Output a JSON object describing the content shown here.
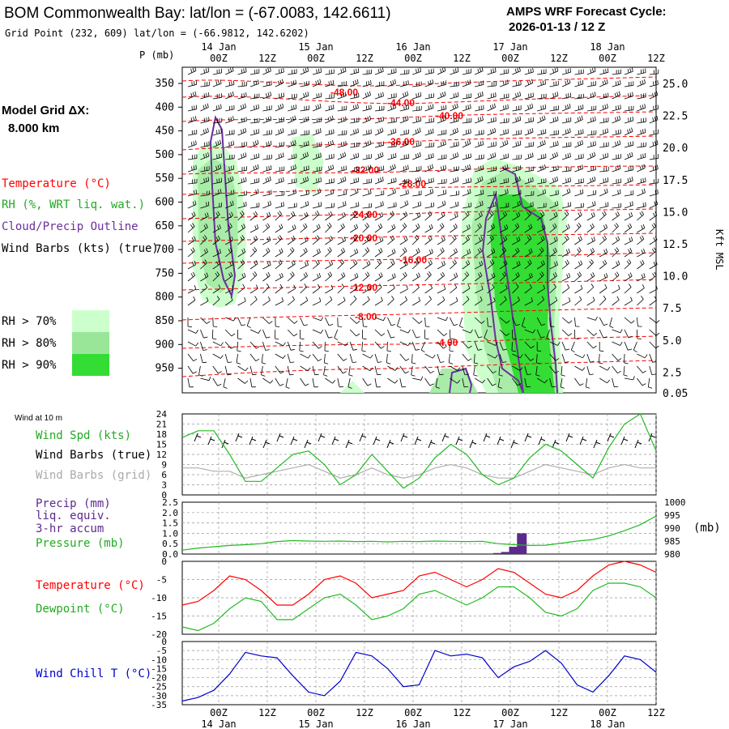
{
  "header": {
    "title": "BOM Commonwealth Bay:  lat/lon = (-67.0083, 142.6611)",
    "subtitle": "Grid Point (232, 609) lat/lon = (-66.9812, 142.6202)",
    "cycle_label": "AMPS WRF Forecast Cycle:",
    "cycle_value": "2026-01-13 / 12  Z"
  },
  "left_panel": {
    "grid_label": "Model Grid ΔX:",
    "grid_value": "8.000 km",
    "legend": {
      "temperature": "Temperature (°C)",
      "rh": "RH (%, WRT liq. wat.)",
      "cloud": "Cloud/Precip Outline",
      "wind": "Wind Barbs (kts) (true)"
    },
    "rh_levels": [
      "RH > 70%",
      "RH > 80%",
      "RH > 90%"
    ]
  },
  "colors": {
    "temp": "#ff0000",
    "rh70": "#ccffcc",
    "rh80": "#99e699",
    "rh90": "#33dd33",
    "cloud": "#6a2f9a",
    "precip": "#5c2a8c",
    "wind_chill": "#0000cc",
    "green_line": "#22bb22"
  },
  "time_axis": {
    "ticks": [
      "00Z",
      "12Z",
      "00Z",
      "12Z",
      "00Z",
      "12Z",
      "00Z",
      "12Z",
      "00Z",
      "12Z"
    ],
    "dates": [
      "14 Jan",
      "15 Jan",
      "16 Jan",
      "17 Jan",
      "18 Jan"
    ]
  },
  "chart_data": [
    {
      "type": "contour",
      "name": "vertical-cross-section",
      "xlabel": "",
      "ylabel_left": "P (mb)",
      "ylabel_right": "Kft MSL",
      "y_ticks_left": [
        "350",
        "400",
        "450",
        "500",
        "550",
        "600",
        "650",
        "700",
        "750",
        "800",
        "850",
        "900",
        "950"
      ],
      "y_ticks_right": [
        "25.0",
        "22.5",
        "20.0",
        "17.5",
        "15.0",
        "12.5",
        "10.0",
        "7.5",
        "5.0",
        "2.5",
        "0.05"
      ],
      "temperature_labels": [
        "-48.00",
        "-44.00",
        "-40.00",
        "-36.00",
        "-32.00",
        "-28.00",
        "-24.00",
        "-20.00",
        "-16.00",
        "-12.00",
        "-8.00",
        "-4.00"
      ]
    },
    {
      "type": "line",
      "name": "wind-speed",
      "panel_label": "Wind at 10 m",
      "series_labels": [
        "Wind Spd (kts)",
        "Wind Barbs (true)",
        "Wind Barbs (grid)"
      ],
      "y_ticks": [
        "24",
        "21",
        "18",
        "15",
        "12",
        "9",
        "6",
        "3",
        "0"
      ],
      "ylim": [
        0,
        24
      ],
      "x_hours": [
        0,
        6,
        12,
        18,
        24,
        30,
        36,
        42,
        48,
        54,
        60,
        66,
        72,
        78,
        84,
        90,
        96,
        102,
        108,
        114,
        120,
        126,
        132,
        138,
        144,
        150,
        156,
        162,
        168,
        174,
        180
      ],
      "values": [
        17,
        19,
        19,
        12,
        4,
        4,
        8,
        12,
        13,
        9,
        3,
        6,
        12,
        7,
        2,
        5,
        11,
        15,
        12,
        6,
        3,
        5,
        11,
        15,
        13,
        9,
        5,
        14,
        21,
        24,
        13
      ],
      "values_grid": [
        8,
        8,
        7,
        7,
        5,
        6,
        7,
        8,
        9,
        7,
        5,
        6,
        8,
        6,
        5,
        6,
        8,
        9,
        8,
        6,
        5,
        5,
        7,
        9,
        8,
        7,
        6,
        8,
        9,
        8,
        8
      ]
    },
    {
      "type": "bar+line",
      "name": "precip-pressure",
      "series_labels": [
        "Precip (mm)",
        "liq. equiv.",
        "3-hr accum",
        "Pressure (mb)"
      ],
      "y_ticks_left": [
        "2.5",
        "2.0",
        "1.5",
        "1.0",
        "0.5",
        "0.0"
      ],
      "y_ticks_right": [
        "1000",
        "995",
        "990",
        "985",
        "980"
      ],
      "right_unit": "(mb)",
      "ylim_precip": [
        0,
        2.5
      ],
      "ylim_pressure": [
        980,
        1000
      ],
      "precip_bars": [
        {
          "hour": 120,
          "value": 0.05
        },
        {
          "hour": 123,
          "value": 0.1
        },
        {
          "hour": 126,
          "value": 0.35
        },
        {
          "hour": 129,
          "value": 1.0
        }
      ],
      "x_hours": [
        0,
        6,
        12,
        18,
        24,
        30,
        36,
        42,
        48,
        54,
        60,
        66,
        72,
        78,
        84,
        90,
        96,
        102,
        108,
        114,
        120,
        126,
        132,
        138,
        144,
        150,
        156,
        162,
        168,
        174,
        180
      ],
      "pressure": [
        981.5,
        982.3,
        982.8,
        983.3,
        983.6,
        984.0,
        984.8,
        985.2,
        985.0,
        984.9,
        985.0,
        984.8,
        984.9,
        984.7,
        984.9,
        984.8,
        985.0,
        984.9,
        984.8,
        984.9,
        984.0,
        983.6,
        983.3,
        983.4,
        984.2,
        985.0,
        985.6,
        987.0,
        989.0,
        991.3,
        994.7
      ]
    },
    {
      "type": "line",
      "name": "temperature-dewpoint",
      "series_labels": [
        "Temperature (°C)",
        "Dewpoint (°C)"
      ],
      "y_ticks": [
        "0",
        "-5",
        "-10",
        "-15",
        "-20"
      ],
      "ylim": [
        -20,
        0
      ],
      "x_hours": [
        0,
        6,
        12,
        18,
        24,
        30,
        36,
        42,
        48,
        54,
        60,
        66,
        72,
        78,
        84,
        90,
        96,
        102,
        108,
        114,
        120,
        126,
        132,
        138,
        144,
        150,
        156,
        162,
        168,
        174,
        180
      ],
      "temperature": [
        -12,
        -11,
        -8,
        -4,
        -5,
        -8,
        -12,
        -12,
        -9,
        -5,
        -4,
        -6,
        -10,
        -9,
        -8,
        -4,
        -3,
        -5,
        -7,
        -5,
        -2,
        -3,
        -6,
        -9,
        -10,
        -8,
        -4,
        -1,
        0,
        -1,
        -3
      ],
      "dewpoint": [
        -18,
        -19,
        -17,
        -13,
        -10,
        -11,
        -16,
        -16,
        -13,
        -10,
        -9,
        -12,
        -16,
        -15,
        -13,
        -9,
        -8,
        -10,
        -12,
        -10,
        -7,
        -7,
        -10,
        -14,
        -15,
        -13,
        -8,
        -6,
        -6,
        -7,
        -10
      ]
    },
    {
      "type": "line",
      "name": "wind-chill",
      "series_labels": [
        "Wind Chill T (°C)"
      ],
      "y_ticks": [
        "0",
        "-5",
        "-10",
        "-15",
        "-20",
        "-25",
        "-30",
        "-35"
      ],
      "ylim": [
        -35,
        0
      ],
      "x_hours": [
        0,
        6,
        12,
        18,
        24,
        30,
        36,
        42,
        48,
        54,
        60,
        66,
        72,
        78,
        84,
        90,
        96,
        102,
        108,
        114,
        120,
        126,
        132,
        138,
        144,
        150,
        156,
        162,
        168,
        174,
        180
      ],
      "values": [
        -33,
        -31,
        -27,
        -18,
        -6,
        -8,
        -9,
        -19,
        -28,
        -30,
        -22,
        -6,
        -8,
        -15,
        -25,
        -24,
        -5,
        -8,
        -7,
        -9,
        -20,
        -14,
        -11,
        -5,
        -12,
        -24,
        -28,
        -19,
        -8,
        -10,
        -17
      ]
    }
  ]
}
